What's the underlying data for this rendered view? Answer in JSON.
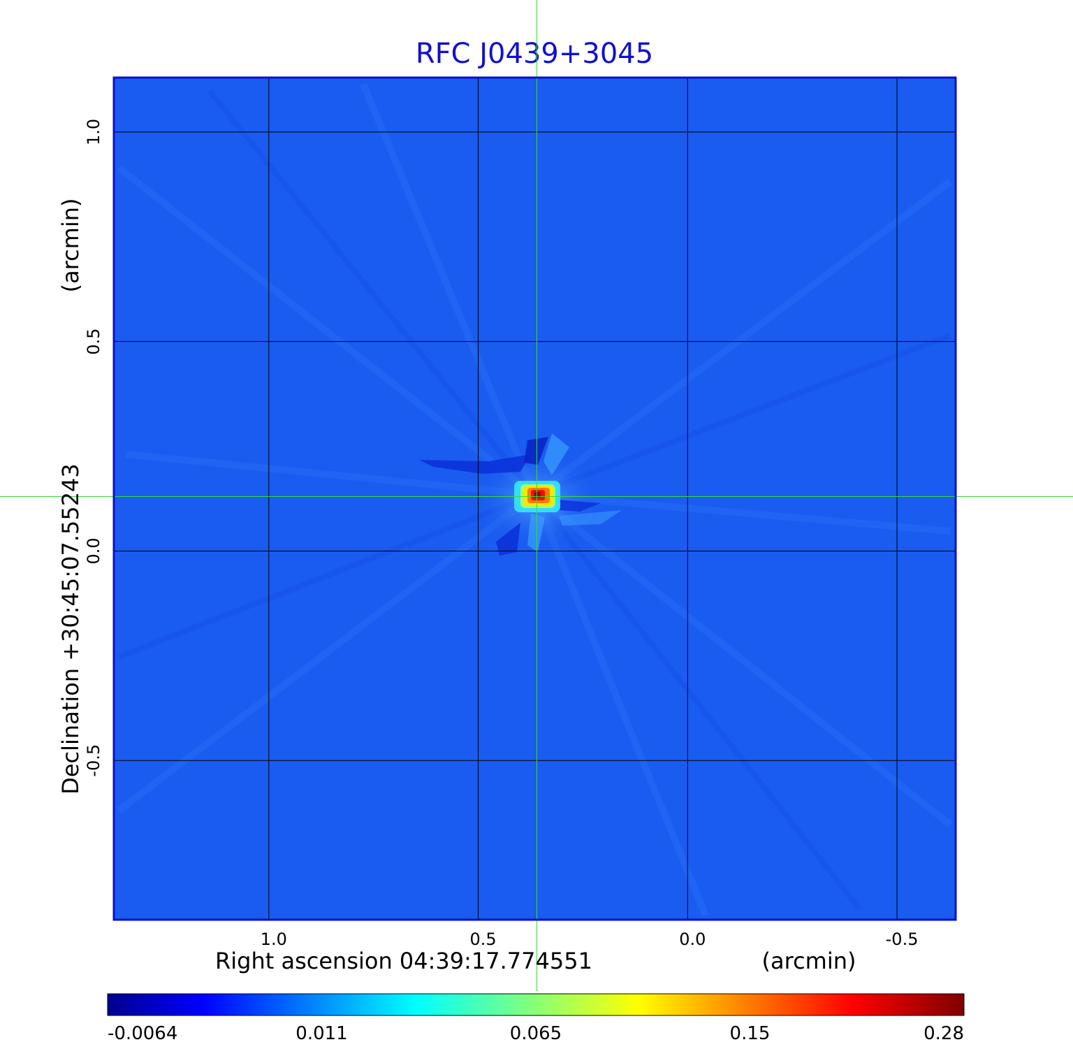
{
  "chart_data": {
    "type": "heatmap",
    "title": "RFC J0439+3045",
    "xlabel": "Right ascension  04:39:17.774551",
    "xunit": "(arcmin)",
    "ylabel": "Declination  +30:45:07.55243",
    "yunit": "(arcmin)",
    "x_ticks": [
      1.0,
      0.5,
      0.0,
      -0.5
    ],
    "x_tick_labels": [
      "1.0",
      "0.5",
      "0.0",
      "-0.5"
    ],
    "y_ticks": [
      1.0,
      0.5,
      0.0,
      -0.5
    ],
    "y_tick_labels": [
      "1.0",
      "0.5",
      "0.0",
      "-0.5"
    ],
    "xlim": [
      1.37,
      -0.64
    ],
    "ylim": [
      -0.88,
      1.13
    ],
    "grid": true,
    "grid_color": "#000000",
    "crosshair": {
      "x": 0.36,
      "y": 0.13,
      "color": "#33dd33"
    },
    "frame_color": "#0a10d0",
    "background_color": "#1a5cf0",
    "colormap": "jet",
    "colorbar": {
      "min": -0.0064,
      "max": 0.28,
      "ticks": [
        -0.0064,
        0.011,
        0.065,
        0.15,
        0.28
      ],
      "tick_labels": [
        "-0.0064",
        "0.011",
        "0.065",
        "0.15",
        "0.28"
      ],
      "placement": "bottom"
    },
    "source": {
      "x": 0.36,
      "y": 0.13,
      "peak": 0.28
    }
  }
}
